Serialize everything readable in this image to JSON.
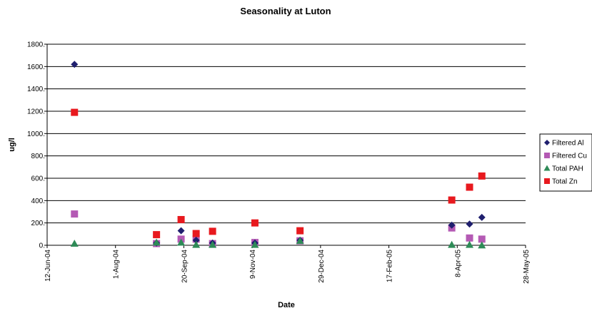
{
  "chart_data": {
    "type": "scatter",
    "title": "Seasonality at Luton",
    "xlabel": "Date",
    "ylabel": "ug/l",
    "x_tick_labels": [
      "12-Jun-04",
      "1-Aug-04",
      "20-Sep-04",
      "9-Nov-04",
      "29-Dec-04",
      "17-Feb-05",
      "8-Apr-05",
      "28-May-05"
    ],
    "x_ticks": [
      "2004-06-12",
      "2004-08-01",
      "2004-09-20",
      "2004-11-09",
      "2004-12-29",
      "2005-02-17",
      "2005-04-08",
      "2005-05-28"
    ],
    "xlim": [
      "2004-06-12",
      "2005-05-28"
    ],
    "ylim": [
      0,
      1800
    ],
    "y_ticks": [
      0,
      200,
      400,
      600,
      800,
      1000,
      1200,
      1400,
      1600,
      1800
    ],
    "y_tick_labels": [
      "0.",
      "200.",
      "400.",
      "600.",
      "800.",
      "1000.",
      "1200.",
      "1400.",
      "1600.",
      "1800."
    ],
    "grid": "horizontal",
    "legend_position": "right",
    "series": [
      {
        "name": "Filtered Al",
        "marker": "diamond",
        "color": "#1f1f6e",
        "points": [
          {
            "x": "2004-07-02",
            "y": 1620
          },
          {
            "x": "2004-08-31",
            "y": 20
          },
          {
            "x": "2004-09-18",
            "y": 130
          },
          {
            "x": "2004-09-29",
            "y": 45
          },
          {
            "x": "2004-10-11",
            "y": 20
          },
          {
            "x": "2004-11-11",
            "y": 20
          },
          {
            "x": "2004-12-14",
            "y": 45
          },
          {
            "x": "2005-04-04",
            "y": 180
          },
          {
            "x": "2005-04-17",
            "y": 190
          },
          {
            "x": "2005-04-26",
            "y": 250
          }
        ]
      },
      {
        "name": "Filtered Cu",
        "marker": "square",
        "color": "#b45ab4",
        "points": [
          {
            "x": "2004-07-02",
            "y": 280
          },
          {
            "x": "2004-08-31",
            "y": 15
          },
          {
            "x": "2004-09-18",
            "y": 55
          },
          {
            "x": "2004-09-29",
            "y": 55
          },
          {
            "x": "2004-10-11",
            "y": 15
          },
          {
            "x": "2004-11-11",
            "y": 25
          },
          {
            "x": "2004-12-14",
            "y": 40
          },
          {
            "x": "2005-04-04",
            "y": 155
          },
          {
            "x": "2005-04-17",
            "y": 65
          },
          {
            "x": "2005-04-26",
            "y": 55
          }
        ]
      },
      {
        "name": "Total PAH",
        "marker": "triangle",
        "color": "#2e8b57",
        "points": [
          {
            "x": "2004-07-02",
            "y": 15
          },
          {
            "x": "2004-08-31",
            "y": 25
          },
          {
            "x": "2004-09-18",
            "y": 25
          },
          {
            "x": "2004-09-29",
            "y": 5
          },
          {
            "x": "2004-10-11",
            "y": 5
          },
          {
            "x": "2004-11-11",
            "y": 5
          },
          {
            "x": "2004-12-14",
            "y": 40
          },
          {
            "x": "2005-04-04",
            "y": 5
          },
          {
            "x": "2005-04-17",
            "y": 5
          },
          {
            "x": "2005-04-26",
            "y": 0
          }
        ]
      },
      {
        "name": "Total Zn",
        "marker": "square",
        "color": "#e8191e",
        "points": [
          {
            "x": "2004-07-02",
            "y": 1190
          },
          {
            "x": "2004-08-31",
            "y": 95
          },
          {
            "x": "2004-09-18",
            "y": 230
          },
          {
            "x": "2004-09-29",
            "y": 105
          },
          {
            "x": "2004-10-11",
            "y": 125
          },
          {
            "x": "2004-11-11",
            "y": 200
          },
          {
            "x": "2004-12-14",
            "y": 130
          },
          {
            "x": "2005-04-04",
            "y": 405
          },
          {
            "x": "2005-04-17",
            "y": 520
          },
          {
            "x": "2005-04-26",
            "y": 620
          }
        ]
      }
    ]
  }
}
